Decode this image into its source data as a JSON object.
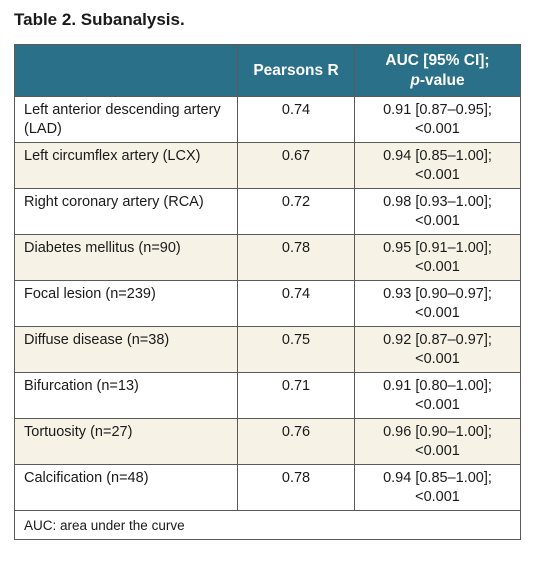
{
  "table_title": "Table 2. Subanalysis.",
  "header": {
    "col_label": "",
    "col_pearson": "Pearsons R",
    "col_auc_line1": "AUC [95% CI];",
    "col_auc_pval": "p",
    "col_auc_rest": "-value"
  },
  "rows": [
    {
      "label": "Left anterior descending artery (LAD)",
      "pearson": "0.74",
      "auc": "0.91 [0.87–0.95];",
      "p": "<0.001"
    },
    {
      "label": "Left circumflex artery (LCX)",
      "pearson": "0.67",
      "auc": "0.94 [0.85–1.00];",
      "p": "<0.001"
    },
    {
      "label": "Right coronary artery (RCA)",
      "pearson": "0.72",
      "auc": "0.98 [0.93–1.00];",
      "p": "<0.001"
    },
    {
      "label": "Diabetes mellitus (n=90)",
      "pearson": "0.78",
      "auc": "0.95 [0.91–1.00];",
      "p": "<0.001"
    },
    {
      "label": "Focal lesion (n=239)",
      "pearson": "0.74",
      "auc": "0.93 [0.90–0.97];",
      "p": "<0.001"
    },
    {
      "label": "Diffuse disease (n=38)",
      "pearson": "0.75",
      "auc": "0.92 [0.87–0.97];",
      "p": "<0.001"
    },
    {
      "label": "Bifurcation (n=13)",
      "pearson": "0.71",
      "auc": "0.91 [0.80–1.00];",
      "p": "<0.001"
    },
    {
      "label": "Tortuosity (n=27)",
      "pearson": "0.76",
      "auc": "0.96 [0.90–1.00];",
      "p": "<0.001"
    },
    {
      "label": "Calcification (n=48)",
      "pearson": "0.78",
      "auc": "0.94 [0.85–1.00];",
      "p": "<0.001"
    }
  ],
  "footnote": "AUC: area under the curve",
  "colors": {
    "header_bg": "#2b7089",
    "header_text": "#ffffff",
    "row_tint": "#f6f3e6",
    "border": "#5a5a5a"
  }
}
